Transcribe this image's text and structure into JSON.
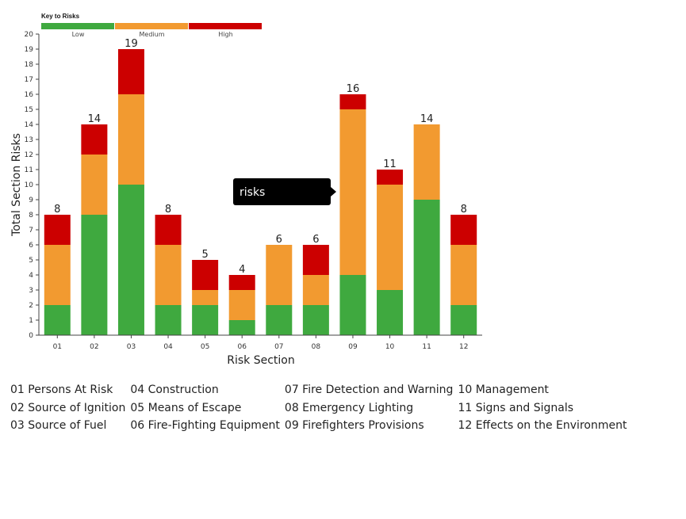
{
  "chart_data": {
    "type": "bar",
    "stacked": true,
    "categories": [
      "01",
      "02",
      "03",
      "04",
      "05",
      "06",
      "07",
      "08",
      "09",
      "10",
      "11",
      "12"
    ],
    "series": [
      {
        "name": "Low",
        "color": "#3fa93f",
        "values": [
          2,
          8,
          10,
          2,
          2,
          1,
          2,
          2,
          4,
          3,
          9,
          2
        ]
      },
      {
        "name": "Medium",
        "color": "#f29a30",
        "values": [
          4,
          4,
          6,
          4,
          1,
          2,
          4,
          2,
          11,
          7,
          5,
          4
        ]
      },
      {
        "name": "High",
        "color": "#cc0000",
        "values": [
          2,
          2,
          3,
          2,
          2,
          1,
          0,
          2,
          1,
          1,
          0,
          2
        ]
      }
    ],
    "totals": [
      8,
      14,
      19,
      8,
      5,
      4,
      6,
      6,
      16,
      11,
      14,
      8
    ],
    "xlabel": "Risk Section",
    "ylabel": "Total Section Risks",
    "ylim": [
      0,
      20
    ],
    "yticks": [
      "0",
      "1",
      "2",
      "3",
      "4",
      "5",
      "6",
      "7",
      "8",
      "9",
      "10",
      "11",
      "12",
      "13",
      "14",
      "15",
      "16",
      "17",
      "18",
      "19",
      "20"
    ],
    "legend": {
      "title": "Key to Risks",
      "placement": "top-left"
    },
    "tooltip": {
      "text": "risks"
    }
  },
  "sections": [
    [
      "01 Persons At Risk",
      "04 Construction",
      "07 Fire Detection and Warning",
      "10 Management"
    ],
    [
      "02 Source of Ignition",
      "05 Means of Escape",
      "08 Emergency Lighting",
      "11 Signs and Signals"
    ],
    [
      "03 Source of Fuel",
      "06 Fire-Fighting Equipment",
      "09 Firefighters Provisions",
      "12 Effects on the Environment"
    ]
  ]
}
